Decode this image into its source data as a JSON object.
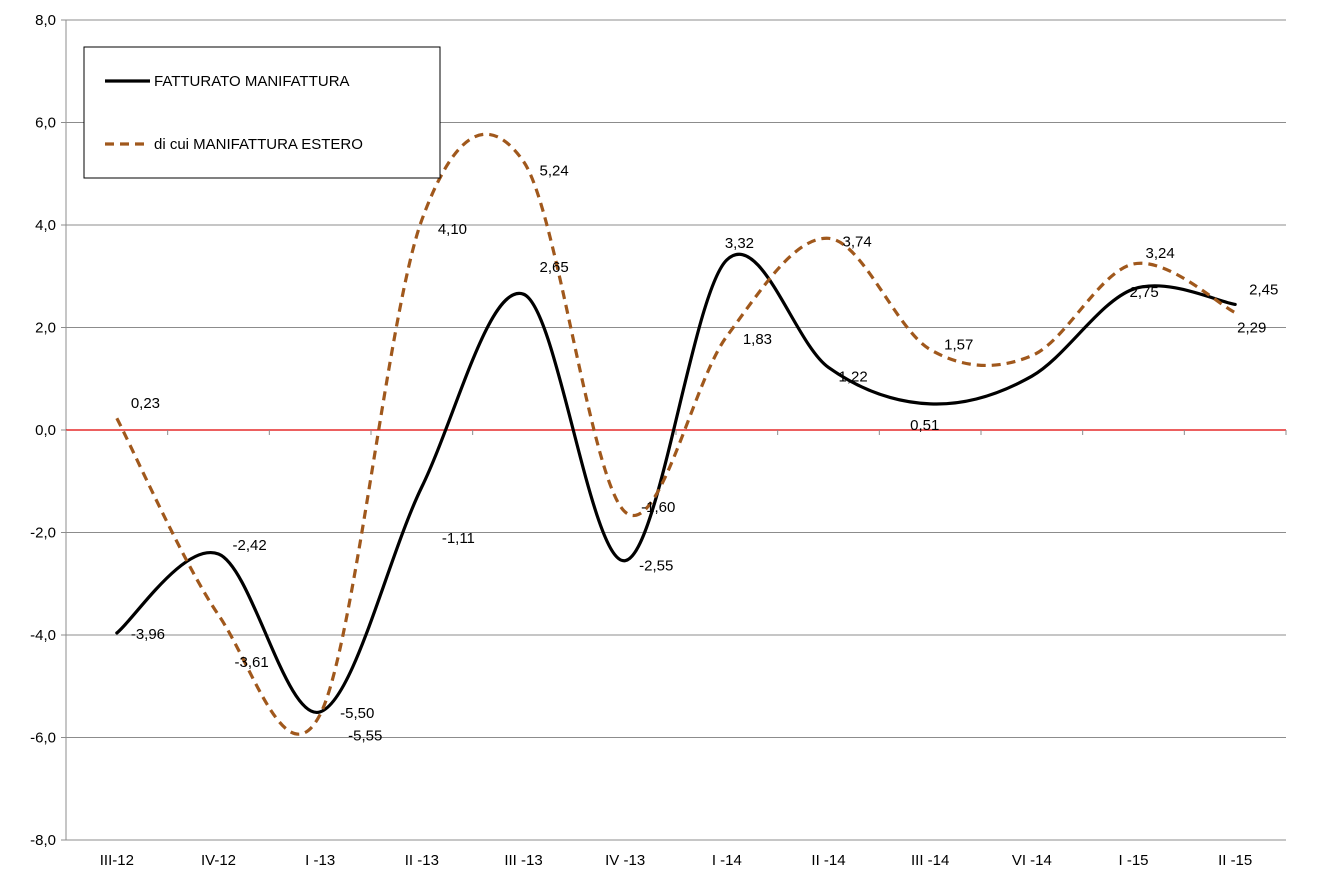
{
  "chart_data": {
    "type": "line",
    "title": "",
    "xlabel": "",
    "ylabel": "",
    "categories": [
      "III-12",
      "IV-12",
      "I -13",
      "II -13",
      "III -13",
      "IV -13",
      "I -14",
      "II -14",
      "III -14",
      "VI -14",
      "I -15",
      "II -15"
    ],
    "ylim": [
      -8,
      8
    ],
    "yticks": [
      "8,0",
      "6,0",
      "4,0",
      "2,0",
      "0,0",
      "-2,0",
      "-4,0",
      "-6,0",
      "-8,0"
    ],
    "grid": true,
    "zero_line_color": "#e00000",
    "legend_position": "top-left",
    "series": [
      {
        "name": "FATTURATO MANIFATTURA",
        "color": "#000000",
        "style": "solid",
        "values": [
          -3.96,
          -2.42,
          -5.5,
          -1.11,
          2.65,
          -2.55,
          3.32,
          1.22,
          0.51,
          1.05,
          2.75,
          2.45
        ],
        "labels": [
          "-3,96",
          "-2,42",
          "-5,50",
          "-1,11",
          "2,65",
          "-2,55",
          "3,32",
          "1,22",
          "0,51",
          "",
          "2,75",
          "2,45"
        ]
      },
      {
        "name": "di cui MANIFATTURA ESTERO",
        "color": "#a0581c",
        "style": "dashed",
        "values": [
          0.23,
          -3.61,
          -5.55,
          4.1,
          5.24,
          -1.6,
          1.83,
          3.74,
          1.57,
          1.45,
          3.24,
          2.29
        ],
        "labels": [
          "0,23",
          "-3,61",
          "-5,55",
          "4,10",
          "5,24",
          "-1,60",
          "1,83",
          "3,74",
          "1,57",
          "",
          "3,24",
          "2,29"
        ]
      }
    ]
  }
}
